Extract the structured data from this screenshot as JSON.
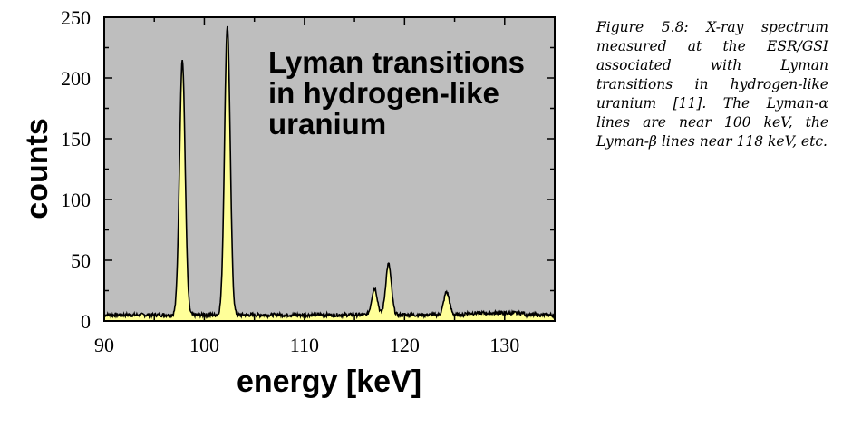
{
  "chart_data": {
    "type": "area",
    "title": "",
    "xlabel": "energy [keV]",
    "ylabel": "counts",
    "xlim": [
      90,
      135
    ],
    "ylim": [
      0,
      250
    ],
    "xticks": [
      90,
      100,
      110,
      120,
      130
    ],
    "yticks": [
      0,
      50,
      100,
      150,
      200,
      250
    ],
    "annotation": [
      "Lyman transitions",
      "in hydrogen-like",
      "uranium"
    ],
    "background_color": "#bebebe",
    "fill_color": "#ffff99",
    "line_color": "#000000",
    "baseline": 5,
    "peaks": [
      {
        "center": 97.8,
        "height": 210
      },
      {
        "center": 102.3,
        "height": 238
      },
      {
        "center": 117.0,
        "height": 22
      },
      {
        "center": 118.4,
        "height": 42
      },
      {
        "center": 124.2,
        "height": 19
      }
    ]
  },
  "caption": "Figure 5.8: X-ray spectrum measured at the ESR/GSI associated with Lyman transitions in hydrogen-like uranium [11]. The Lyman-α lines are near 100 keV, the Lyman-β lines near 118 keV, etc."
}
